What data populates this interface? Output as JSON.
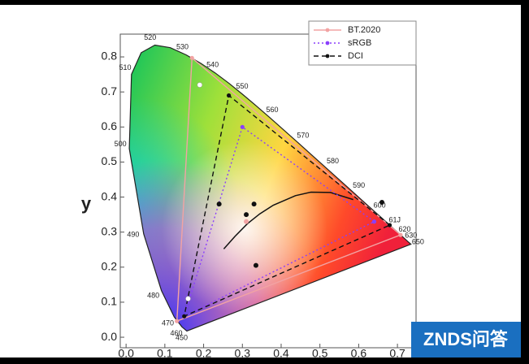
{
  "chart_data": {
    "type": "chromaticity",
    "y_label": "y",
    "xlim": [
      -0.015,
      0.748
    ],
    "ylim": [
      -0.03,
      0.865
    ],
    "xticks": [
      {
        "value": 0,
        "label": "0.0"
      },
      {
        "value": 0.1,
        "label": "0.1"
      },
      {
        "value": 0.2,
        "label": "0.2"
      },
      {
        "value": 0.3,
        "label": "0.3"
      },
      {
        "value": 0.4,
        "label": "0.4"
      },
      {
        "value": 0.5,
        "label": "0.5"
      },
      {
        "value": 0.6,
        "label": "0.6"
      },
      {
        "value": 0.7,
        "label": "0.7"
      }
    ],
    "yticks": [
      {
        "value": 0,
        "label": "0.0"
      },
      {
        "value": 0.1,
        "label": "0.1"
      },
      {
        "value": 0.2,
        "label": "0.2"
      },
      {
        "value": 0.3,
        "label": "0.3"
      },
      {
        "value": 0.4,
        "label": "0.4"
      },
      {
        "value": 0.5,
        "label": "0.5"
      },
      {
        "value": 0.6,
        "label": "0.6"
      },
      {
        "value": 0.7,
        "label": "0.7"
      },
      {
        "value": 0.8,
        "label": "0.8"
      }
    ],
    "locus": {
      "x": [
        0.1566,
        0.144,
        0.1241,
        0.0913,
        0.0454,
        0.0082,
        0.0139,
        0.0389,
        0.0743,
        0.1142,
        0.1547,
        0.1929,
        0.2296,
        0.2658,
        0.3016,
        0.3373,
        0.3731,
        0.4441,
        0.5125,
        0.5752,
        0.627,
        0.6658,
        0.6915,
        0.7079,
        0.726,
        0.7347
      ],
      "y": [
        0.0177,
        0.0297,
        0.0578,
        0.1327,
        0.295,
        0.5384,
        0.7502,
        0.812,
        0.8338,
        0.8262,
        0.8059,
        0.7816,
        0.7543,
        0.7243,
        0.6923,
        0.6589,
        0.6245,
        0.5547,
        0.4866,
        0.4242,
        0.3725,
        0.334,
        0.3083,
        0.292,
        0.274,
        0.2653
      ],
      "labels": [
        "450",
        "460",
        "470",
        "480",
        "490",
        "500",
        "510",
        null,
        "520",
        null,
        "530",
        null,
        "540",
        null,
        "550",
        null,
        "560",
        "570",
        "580",
        "590",
        "600",
        "61J",
        "620",
        "630",
        "650",
        null
      ]
    },
    "planckian": {
      "x": [
        0.586,
        0.527,
        0.477,
        0.437,
        0.38,
        0.345,
        0.313,
        0.281,
        0.252
      ],
      "y": [
        0.393,
        0.413,
        0.414,
        0.404,
        0.377,
        0.352,
        0.324,
        0.288,
        0.252
      ]
    },
    "series": [
      {
        "name": "BT.2020",
        "color": "#f2a3a3",
        "dash": "none",
        "x": [
          0.708,
          0.17,
          0.131
        ],
        "y": [
          0.292,
          0.797,
          0.046
        ]
      },
      {
        "name": "sRGB",
        "color": "#8a3ffc",
        "dash": "2 3",
        "x": [
          0.64,
          0.3,
          0.15
        ],
        "y": [
          0.33,
          0.6,
          0.06
        ]
      },
      {
        "name": "DCI",
        "color": "#111111",
        "dash": "6 4",
        "x": [
          0.68,
          0.265,
          0.15
        ],
        "y": [
          0.32,
          0.69,
          0.06
        ]
      }
    ],
    "markers": {
      "x": [
        0.24,
        0.33,
        0.31,
        0.335,
        0.66,
        0.19,
        0.16,
        0.31
      ],
      "y": [
        0.38,
        0.38,
        0.35,
        0.205,
        0.385,
        0.72,
        0.11,
        0.33
      ],
      "colors": [
        "#111111",
        "#111111",
        "#111111",
        "#111111",
        "#111111",
        "#ffffff",
        "#ffffff",
        "#f2a3a3"
      ]
    }
  },
  "watermark": "ZNDS问答"
}
